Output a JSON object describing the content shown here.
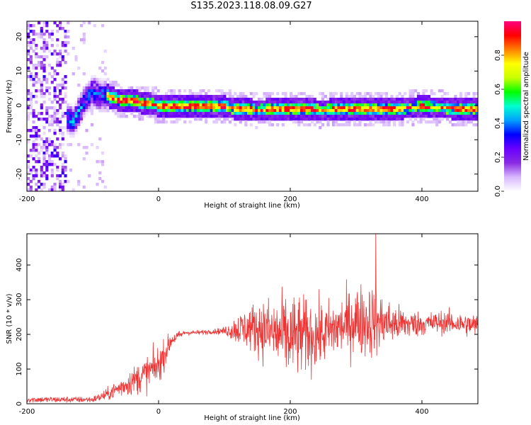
{
  "title": "S135.2023.118.08.09.G27",
  "chart_data": [
    {
      "type": "heatmap",
      "xlabel": "Height of straight line (km)",
      "ylabel": "Frequency (Hz)",
      "xlim": [
        -200,
        485
      ],
      "ylim": [
        -25,
        24.5
      ],
      "xticks": [
        -200,
        0,
        200,
        400
      ],
      "yticks": [
        -20,
        -10,
        0,
        10,
        20
      ],
      "colorbar": {
        "label": "Normalized spectral amplitude",
        "range": [
          0,
          1
        ],
        "ticks": [
          0.0,
          0.2,
          0.4,
          0.6,
          0.8
        ],
        "colormap": [
          "#ffffff",
          "#d8b8ff",
          "#8a2be2",
          "#6a00ff",
          "#0000ff",
          "#00a0ff",
          "#00ffd0",
          "#00ff00",
          "#c8ff00",
          "#ffff00",
          "#ff8000",
          "#ff0000",
          "#ff0080"
        ]
      },
      "ridge": {
        "description_points_x": [
          -200,
          -150,
          -130,
          -110,
          -100,
          -90,
          -80,
          -60,
          -40,
          -20,
          0,
          50,
          100,
          150,
          200,
          250,
          300,
          350,
          400,
          485
        ],
        "frequency_hz": [
          null,
          -2,
          -5,
          2,
          4,
          3,
          3,
          1.5,
          1.5,
          0.5,
          0,
          -0.5,
          -0.5,
          -1.5,
          -1,
          -1.5,
          -1,
          -1,
          -0.5,
          -1
        ]
      }
    },
    {
      "type": "line",
      "xlabel": "Height of straight line (km)",
      "ylabel": "SNR (10 * v/v)",
      "xlim": [
        -200,
        485
      ],
      "ylim": [
        0,
        490
      ],
      "xticks": [
        -200,
        0,
        200,
        400
      ],
      "yticks": [
        0,
        100,
        200,
        300,
        400
      ],
      "series_color": "#ee3333",
      "envelope": {
        "x": [
          -200,
          -150,
          -100,
          -80,
          -60,
          -40,
          -20,
          0,
          20,
          40,
          60,
          80,
          100,
          120,
          150,
          180,
          200,
          220,
          250,
          280,
          300,
          320,
          340,
          360,
          380,
          400,
          430,
          460,
          485
        ],
        "mean": [
          12,
          12,
          12,
          25,
          45,
          65,
          85,
          110,
          185,
          205,
          205,
          208,
          210,
          215,
          220,
          200,
          190,
          195,
          200,
          225,
          240,
          240,
          235,
          230,
          230,
          230,
          235,
          230,
          225
        ],
        "spread": [
          8,
          8,
          8,
          15,
          25,
          35,
          45,
          50,
          20,
          6,
          6,
          6,
          10,
          40,
          70,
          100,
          110,
          100,
          80,
          80,
          90,
          100,
          70,
          50,
          40,
          30,
          30,
          30,
          30
        ]
      },
      "peak": {
        "x": 330,
        "y": 490
      }
    }
  ]
}
